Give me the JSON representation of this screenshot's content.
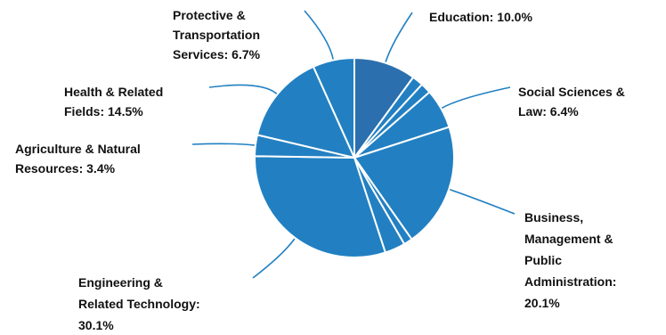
{
  "chart_data": {
    "type": "pie",
    "slice_color": "#2280c2",
    "edge_color": "#ffffff",
    "leader_color": "#2280c2",
    "slices": [
      {
        "label": "Education: 10.0%",
        "value": 10.0,
        "color": "#2b6fae"
      },
      {
        "label": "",
        "value": 1.8
      },
      {
        "label": "",
        "value": 1.7
      },
      {
        "label": "Social Sciences & Law: 6.4%",
        "value": 6.4
      },
      {
        "label": "Business, Management & Public Administration: 20.1%",
        "value": 20.1
      },
      {
        "label": "",
        "value": 1.4
      },
      {
        "label": "",
        "value": 3.3
      },
      {
        "label": "Engineering & Related Technology: 30.1%",
        "value": 30.1
      },
      {
        "label": "Agriculture & Natural Resources: 3.4%",
        "value": 3.4
      },
      {
        "label": "Health & Related Fields: 14.5%",
        "value": 14.5
      },
      {
        "label": "Protective & Transportation Services: 6.7%",
        "value": 6.7
      }
    ]
  }
}
